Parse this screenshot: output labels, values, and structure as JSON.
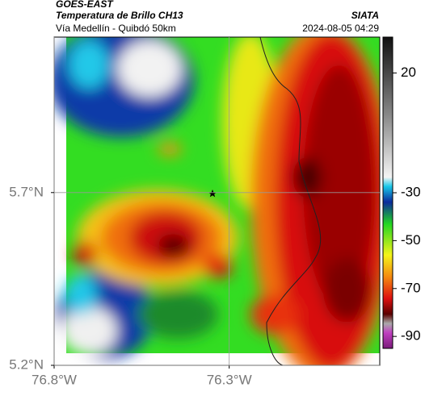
{
  "header": {
    "source": "GOES-EAST",
    "title": "Temperatura de Brillo CH13",
    "org": "SIATA",
    "subtitle": "Vía Medellín - Quibdó 50km",
    "datetime": "2024-08-05 04:29"
  },
  "map": {
    "xlim": [
      -76.8,
      -75.87
    ],
    "ylim": [
      5.2,
      6.15
    ],
    "xticks": [
      {
        "value": -76.8,
        "label": "76.8°W"
      },
      {
        "value": -76.3,
        "label": "76.3°W"
      }
    ],
    "yticks": [
      {
        "value": 5.2,
        "label": "5.2°N"
      },
      {
        "value": 5.7,
        "label": "5.7°N"
      }
    ],
    "grid": true
  },
  "colorbar": {
    "lim": [
      -95,
      35
    ],
    "ticks": [
      20,
      -30,
      -50,
      -70,
      -90
    ]
  }
}
